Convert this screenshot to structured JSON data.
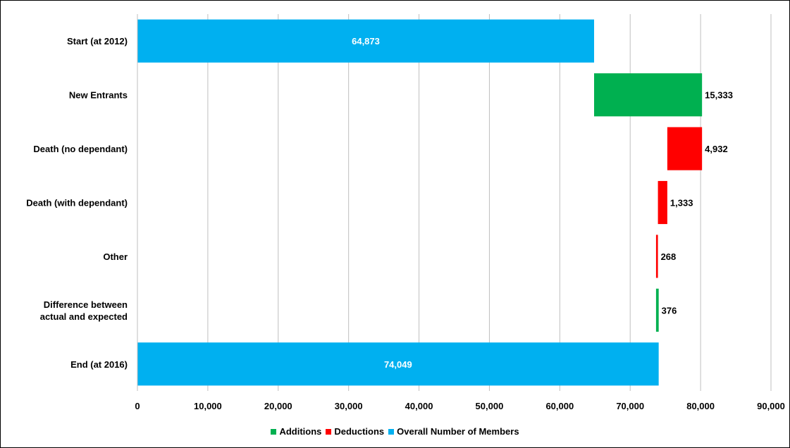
{
  "colors": {
    "additions": "#00B050",
    "deductions": "#FF0000",
    "overall": "#00B0F0",
    "grid": "#BFBFBF"
  },
  "chart_data": {
    "type": "bar",
    "orientation": "horizontal",
    "style": "waterfall",
    "title": "",
    "xlabel": "",
    "ylabel": "",
    "xlim": [
      0,
      90000
    ],
    "x_ticks": [
      "0",
      "10,000",
      "20,000",
      "30,000",
      "40,000",
      "50,000",
      "60,000",
      "70,000",
      "80,000",
      "90,000"
    ],
    "grid": "vertical",
    "legend_position": "bottom",
    "legend": [
      {
        "name": "Additions",
        "color_key": "additions"
      },
      {
        "name": "Deductions",
        "color_key": "deductions"
      },
      {
        "name": "Overall Number of Members",
        "color_key": "overall"
      }
    ],
    "categories": [
      "Start (at 2012)",
      "New Entrants",
      "Death (no dependant)",
      "Death (with dependant)",
      "Other",
      "Difference between actual and expected",
      "End (at 2016)"
    ],
    "category_lines": [
      [
        "Start (at 2012)"
      ],
      [
        "New Entrants"
      ],
      [
        "Death (no dependant)"
      ],
      [
        "Death (with dependant)"
      ],
      [
        "Other"
      ],
      [
        "Difference between",
        "actual and expected"
      ],
      [
        "End (at 2016)"
      ]
    ],
    "bars": [
      {
        "category": "Start (at 2012)",
        "series": "Overall Number of Members",
        "start": 0,
        "end": 64873,
        "label": "64,873"
      },
      {
        "category": "New Entrants",
        "series": "Additions",
        "start": 64873,
        "end": 80206,
        "label": "15,333"
      },
      {
        "category": "Death (no dependant)",
        "series": "Deductions",
        "start": 75274,
        "end": 80206,
        "label": "4,932"
      },
      {
        "category": "Death (with dependant)",
        "series": "Deductions",
        "start": 73941,
        "end": 75274,
        "label": "1,333"
      },
      {
        "category": "Other",
        "series": "Deductions",
        "start": 73673,
        "end": 73941,
        "label": "268"
      },
      {
        "category": "Difference between actual and expected",
        "series": "Additions",
        "start": 73673,
        "end": 74049,
        "label": "376"
      },
      {
        "category": "End (at 2016)",
        "series": "Overall Number of Members",
        "start": 0,
        "end": 74049,
        "label": "74,049"
      }
    ]
  }
}
